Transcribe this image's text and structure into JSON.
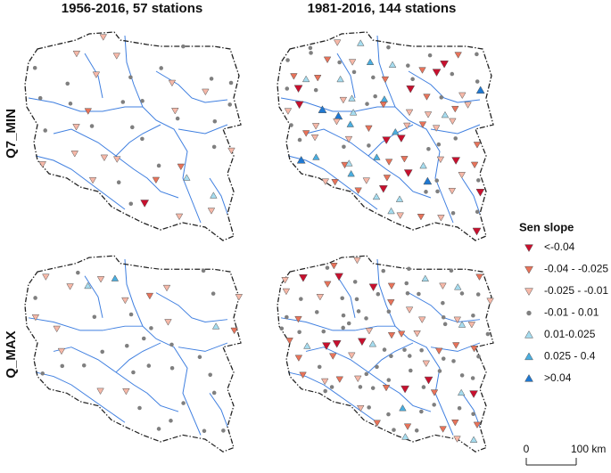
{
  "columns": [
    {
      "title": "1956-2016, 57 stations"
    },
    {
      "title": "1981-2016, 144 stations"
    }
  ],
  "rows": [
    {
      "label": "Q7_MIN"
    },
    {
      "label": "Q_MAX"
    }
  ],
  "legend": {
    "title": "Sen slope",
    "items": [
      {
        "label": "<-0.04",
        "color": "#c8102e",
        "shape": "down"
      },
      {
        "label": "-0.04 - -0.025",
        "color": "#e8735a",
        "shape": "down"
      },
      {
        "label": "-0.025 - -0.01",
        "color": "#f6b8a8",
        "shape": "down"
      },
      {
        "label": "-0.01 - 0.01",
        "color": "#7f7f7f",
        "shape": "circle"
      },
      {
        "label": "0.01-0.025",
        "color": "#a6dcef",
        "shape": "up"
      },
      {
        "label": "0.025 - 0.4",
        "color": "#4aaee0",
        "shape": "up"
      },
      {
        "label": ">0.04",
        "color": "#1f78d1",
        "shape": "up"
      }
    ]
  },
  "scale_bar": {
    "labels": [
      "0",
      "100 km"
    ]
  }
}
